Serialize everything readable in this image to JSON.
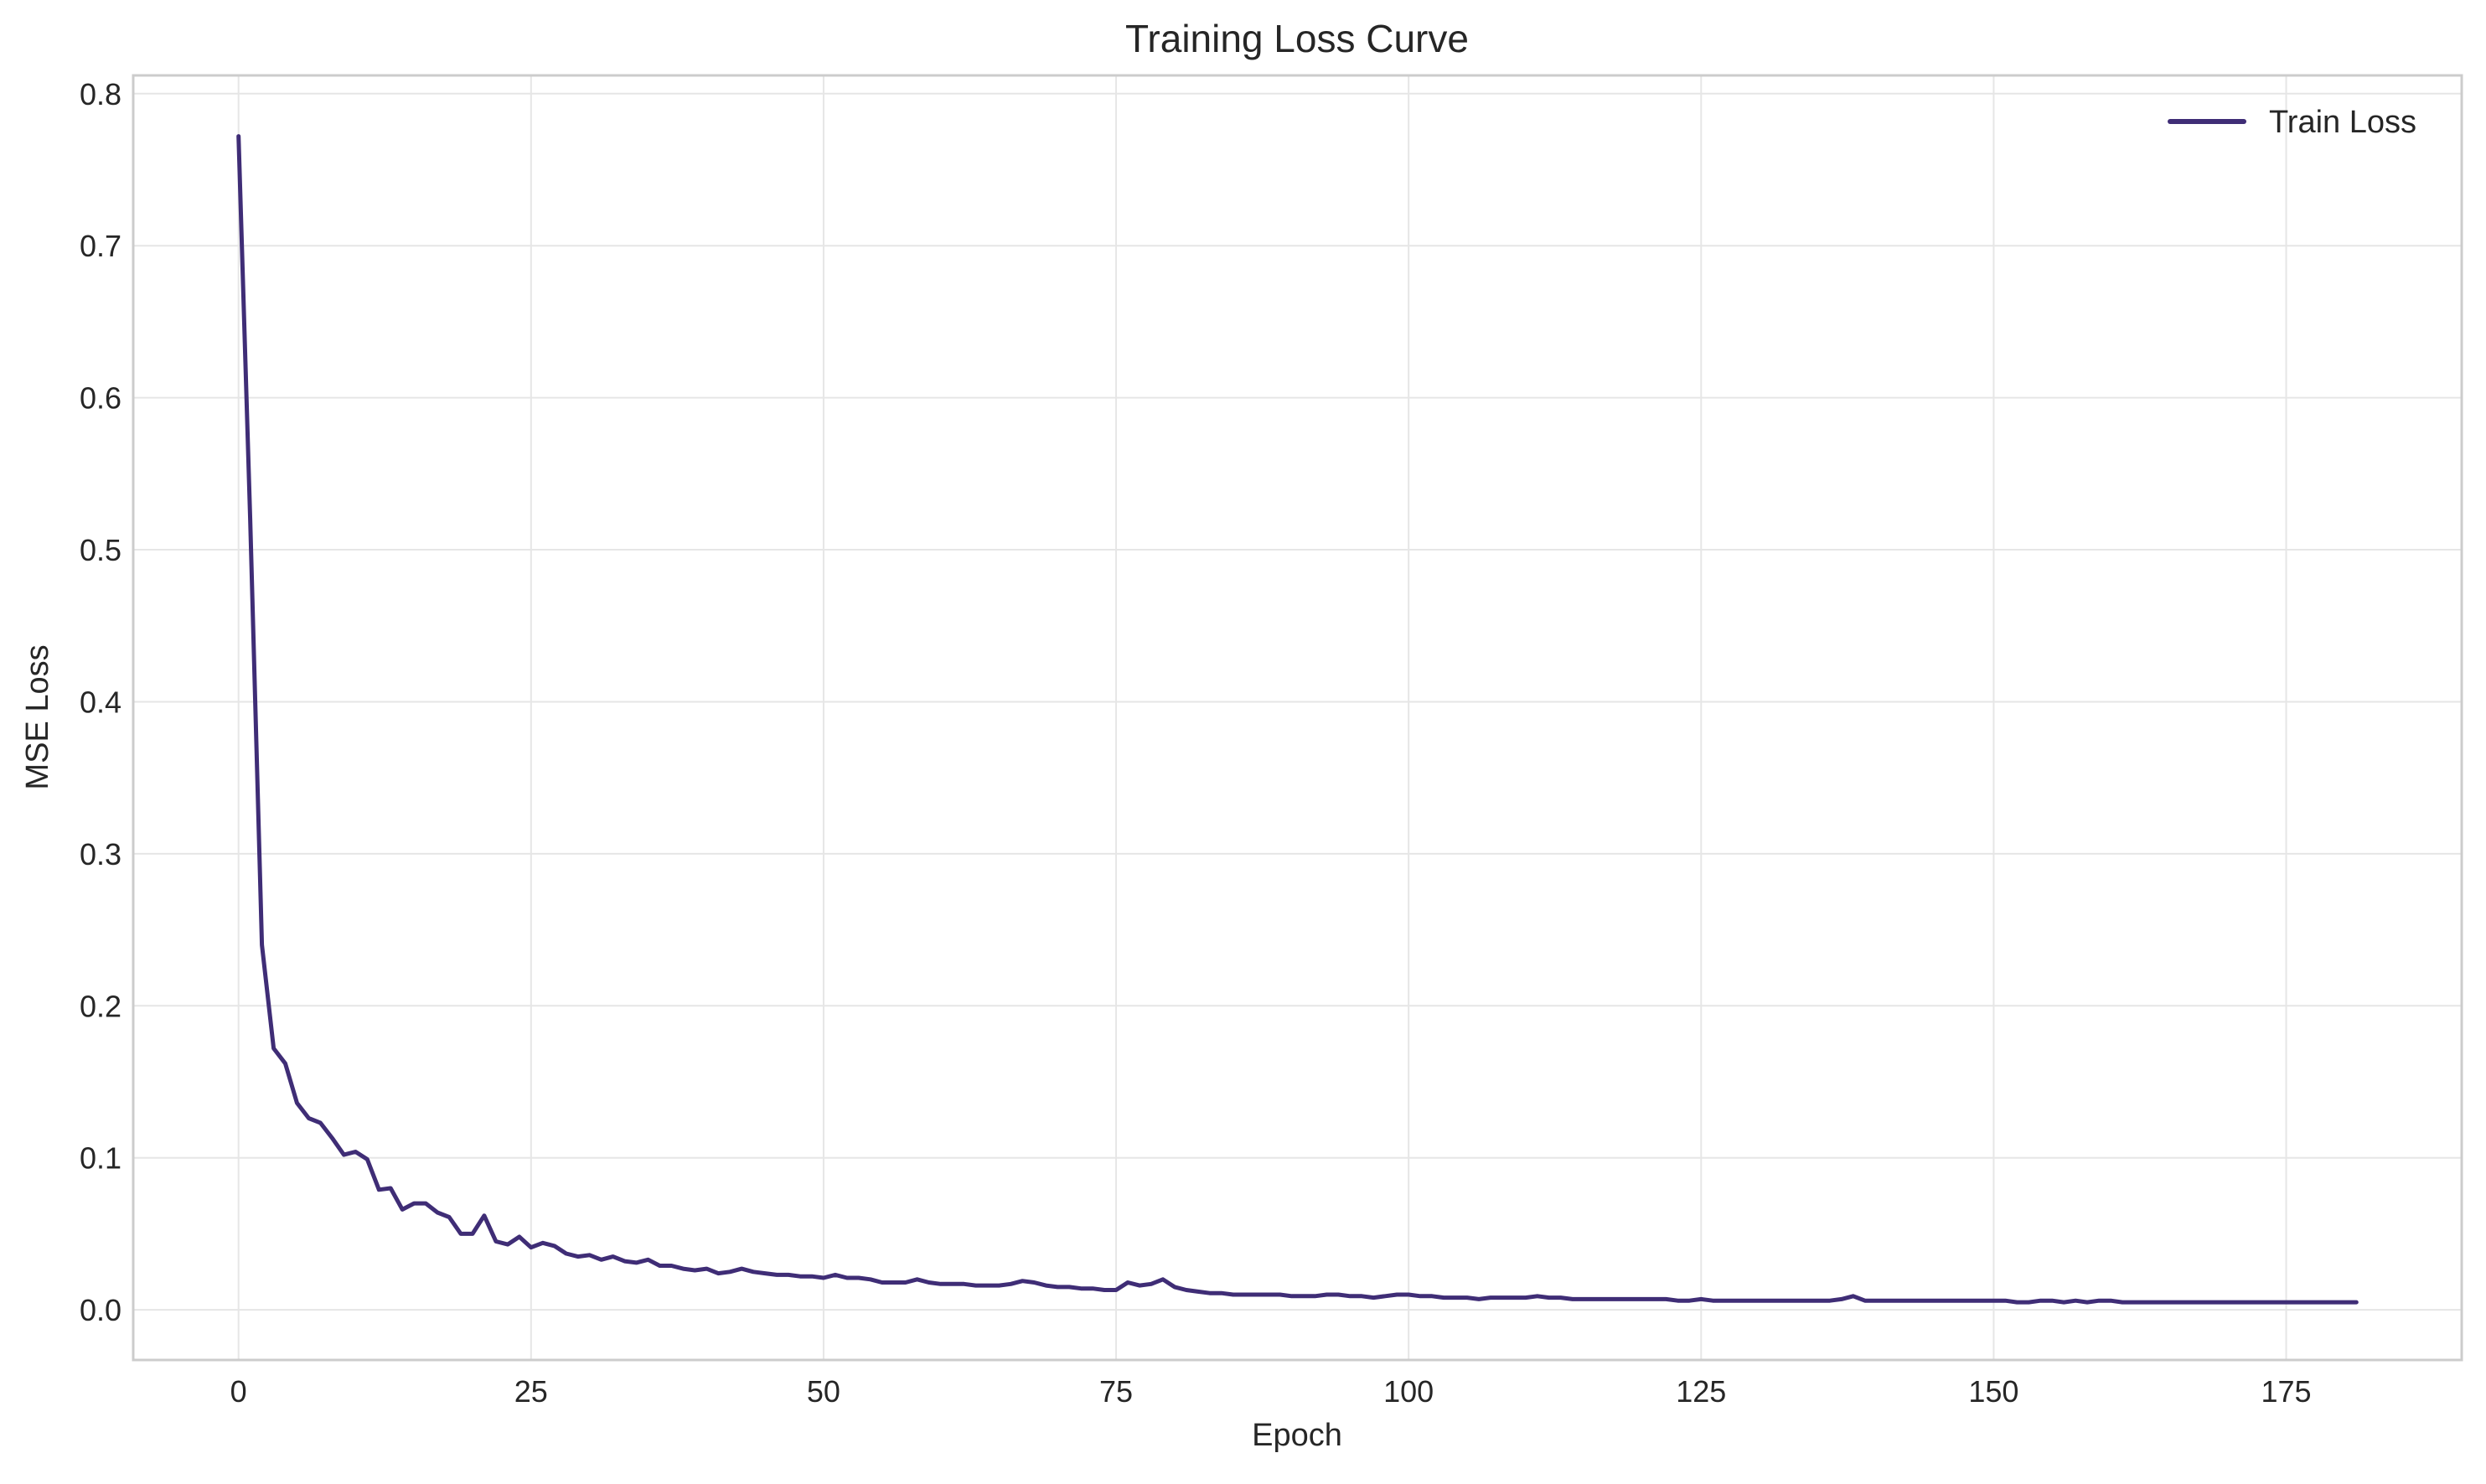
{
  "chart_data": {
    "type": "line",
    "title": "Training Loss Curve",
    "xlabel": "Epoch",
    "ylabel": "MSE Loss",
    "xlim": [
      -9,
      190
    ],
    "ylim": [
      -0.033,
      0.812
    ],
    "xticks": [
      0,
      25,
      50,
      75,
      100,
      125,
      150,
      175
    ],
    "xtick_labels": [
      "0",
      "25",
      "50",
      "75",
      "100",
      "125",
      "150",
      "175"
    ],
    "yticks": [
      0.0,
      0.1,
      0.2,
      0.3,
      0.4,
      0.5,
      0.6,
      0.7,
      0.8
    ],
    "ytick_labels": [
      "0.0",
      "0.1",
      "0.2",
      "0.3",
      "0.4",
      "0.5",
      "0.6",
      "0.7",
      "0.8"
    ],
    "grid": true,
    "legend_position": "top-right",
    "series": [
      {
        "name": "Train Loss",
        "color": "#3f2d76",
        "x": [
          0,
          1,
          2,
          3,
          4,
          5,
          6,
          7,
          8,
          9,
          10,
          11,
          12,
          13,
          14,
          15,
          16,
          17,
          18,
          19,
          20,
          21,
          22,
          23,
          24,
          25,
          26,
          27,
          28,
          29,
          30,
          31,
          32,
          33,
          34,
          35,
          36,
          37,
          38,
          39,
          40,
          41,
          42,
          43,
          44,
          45,
          46,
          47,
          48,
          49,
          50,
          51,
          52,
          53,
          54,
          55,
          56,
          57,
          58,
          59,
          60,
          61,
          62,
          63,
          64,
          65,
          66,
          67,
          68,
          69,
          70,
          71,
          72,
          73,
          74,
          75,
          76,
          77,
          78,
          79,
          80,
          81,
          82,
          83,
          84,
          85,
          86,
          87,
          88,
          89,
          90,
          91,
          92,
          93,
          94,
          95,
          96,
          97,
          98,
          99,
          100,
          101,
          102,
          103,
          104,
          105,
          106,
          107,
          108,
          109,
          110,
          111,
          112,
          113,
          114,
          115,
          116,
          117,
          118,
          119,
          120,
          121,
          122,
          123,
          124,
          125,
          126,
          127,
          128,
          129,
          130,
          131,
          132,
          133,
          134,
          135,
          136,
          137,
          138,
          139,
          140,
          141,
          142,
          143,
          144,
          145,
          146,
          147,
          148,
          149,
          150,
          151,
          152,
          153,
          154,
          155,
          156,
          157,
          158,
          159,
          160,
          161,
          162,
          163,
          164,
          165,
          166,
          167,
          168,
          169,
          170,
          171,
          172,
          173,
          174,
          175,
          176,
          177,
          178,
          179,
          180,
          181
        ],
        "y": [
          0.772,
          0.52,
          0.24,
          0.172,
          0.162,
          0.136,
          0.126,
          0.123,
          0.113,
          0.102,
          0.104,
          0.099,
          0.079,
          0.08,
          0.066,
          0.07,
          0.07,
          0.064,
          0.061,
          0.05,
          0.05,
          0.062,
          0.045,
          0.043,
          0.048,
          0.041,
          0.044,
          0.042,
          0.037,
          0.035,
          0.036,
          0.033,
          0.035,
          0.032,
          0.031,
          0.033,
          0.029,
          0.029,
          0.027,
          0.026,
          0.027,
          0.024,
          0.025,
          0.027,
          0.025,
          0.024,
          0.023,
          0.023,
          0.022,
          0.022,
          0.021,
          0.023,
          0.021,
          0.021,
          0.02,
          0.018,
          0.018,
          0.018,
          0.02,
          0.018,
          0.017,
          0.017,
          0.017,
          0.016,
          0.016,
          0.016,
          0.017,
          0.019,
          0.018,
          0.016,
          0.015,
          0.015,
          0.014,
          0.014,
          0.013,
          0.013,
          0.018,
          0.016,
          0.017,
          0.02,
          0.015,
          0.013,
          0.012,
          0.011,
          0.011,
          0.01,
          0.01,
          0.01,
          0.01,
          0.01,
          0.009,
          0.009,
          0.009,
          0.01,
          0.01,
          0.009,
          0.009,
          0.008,
          0.009,
          0.01,
          0.01,
          0.009,
          0.009,
          0.008,
          0.008,
          0.008,
          0.007,
          0.008,
          0.008,
          0.008,
          0.008,
          0.009,
          0.008,
          0.008,
          0.007,
          0.007,
          0.007,
          0.007,
          0.007,
          0.007,
          0.007,
          0.007,
          0.007,
          0.006,
          0.006,
          0.007,
          0.006,
          0.006,
          0.006,
          0.006,
          0.006,
          0.006,
          0.006,
          0.006,
          0.006,
          0.006,
          0.006,
          0.007,
          0.009,
          0.006,
          0.006,
          0.006,
          0.006,
          0.006,
          0.006,
          0.006,
          0.006,
          0.006,
          0.006,
          0.006,
          0.006,
          0.006,
          0.005,
          0.005,
          0.006,
          0.006,
          0.005,
          0.006,
          0.005,
          0.006,
          0.006,
          0.005,
          0.005,
          0.005,
          0.005,
          0.005,
          0.005,
          0.005,
          0.005,
          0.005,
          0.005,
          0.005,
          0.005,
          0.005,
          0.005,
          0.005,
          0.005,
          0.005,
          0.005,
          0.005,
          0.005,
          0.005
        ]
      }
    ]
  }
}
